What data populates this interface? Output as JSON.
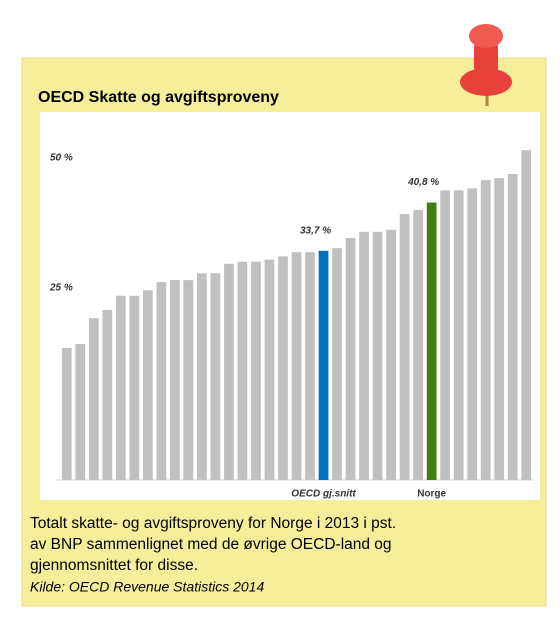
{
  "chart_data": {
    "type": "bar",
    "title": "OECD Skatte og avgiftsproveny",
    "categories": [
      null,
      null,
      null,
      null,
      null,
      null,
      null,
      null,
      null,
      null,
      null,
      null,
      null,
      null,
      null,
      null,
      null,
      null,
      null,
      "OECD gj.snitt",
      null,
      null,
      null,
      null,
      null,
      null,
      null,
      "Norge",
      null,
      null,
      null,
      null,
      null,
      null,
      null
    ],
    "values": [
      19.4,
      20.0,
      23.8,
      25.0,
      27.1,
      27.1,
      27.9,
      29.1,
      29.4,
      29.4,
      30.4,
      30.4,
      31.8,
      32.1,
      32.1,
      32.4,
      32.9,
      33.5,
      33.5,
      33.7,
      34.1,
      35.6,
      36.5,
      36.5,
      36.8,
      39.1,
      39.7,
      40.8,
      42.6,
      42.6,
      42.9,
      44.1,
      44.4,
      45.0,
      48.5
    ],
    "value_labels": [
      null,
      null,
      null,
      null,
      null,
      null,
      null,
      null,
      null,
      null,
      null,
      null,
      null,
      null,
      null,
      null,
      null,
      null,
      null,
      "33,7 %",
      null,
      null,
      null,
      null,
      null,
      null,
      null,
      "40,8 %",
      null,
      null,
      null,
      null,
      null,
      null,
      null
    ],
    "colors": [
      "#c0c0c0",
      "#c0c0c0",
      "#c0c0c0",
      "#c0c0c0",
      "#c0c0c0",
      "#c0c0c0",
      "#c0c0c0",
      "#c0c0c0",
      "#c0c0c0",
      "#c0c0c0",
      "#c0c0c0",
      "#c0c0c0",
      "#c0c0c0",
      "#c0c0c0",
      "#c0c0c0",
      "#c0c0c0",
      "#c0c0c0",
      "#c0c0c0",
      "#c0c0c0",
      "#0070c0",
      "#c0c0c0",
      "#c0c0c0",
      "#c0c0c0",
      "#c0c0c0",
      "#c0c0c0",
      "#c0c0c0",
      "#c0c0c0",
      "#3f7f10",
      "#c0c0c0",
      "#c0c0c0",
      "#c0c0c0",
      "#c0c0c0",
      "#c0c0c0",
      "#c0c0c0",
      "#c0c0c0"
    ],
    "ylim": [
      0,
      50
    ],
    "yticks": [
      {
        "value": 25,
        "label": "25 %"
      },
      {
        "value": 50,
        "label": "50 %"
      }
    ],
    "grid": false
  },
  "caption": [
    "Totalt skatte- og avgiftsproveny for Norge i 2013 i pst.",
    "av BNP sammenlignet med de øvrige OECD-land og",
    "gjennomsnittet for disse."
  ],
  "source": "Kilde: OECD Revenue Statistics 2014"
}
